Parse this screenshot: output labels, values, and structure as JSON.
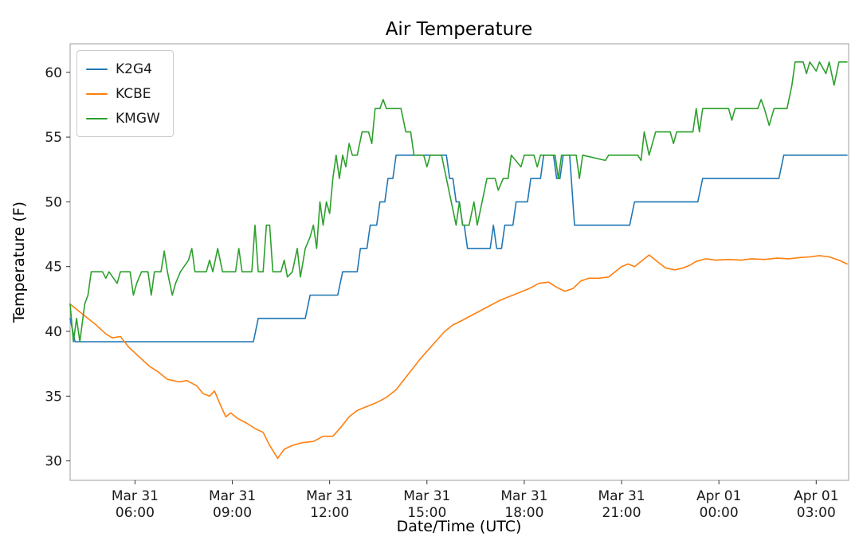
{
  "chart_data": {
    "type": "line",
    "title": "Air Temperature",
    "xlabel": "Date/Time (UTC)",
    "ylabel": "Temperature (F)",
    "x_unit": "hours since Mar 31 04:00 UTC",
    "xlim": [
      0,
      24
    ],
    "ylim": [
      28.5,
      62.2
    ],
    "yticks": [
      30,
      35,
      40,
      45,
      50,
      55,
      60
    ],
    "xticks": [
      {
        "t": 2,
        "line1": "Mar 31",
        "line2": "06:00"
      },
      {
        "t": 5,
        "line1": "Mar 31",
        "line2": "09:00"
      },
      {
        "t": 8,
        "line1": "Mar 31",
        "line2": "12:00"
      },
      {
        "t": 11,
        "line1": "Mar 31",
        "line2": "15:00"
      },
      {
        "t": 14,
        "line1": "Mar 31",
        "line2": "18:00"
      },
      {
        "t": 17,
        "line1": "Mar 31",
        "line2": "21:00"
      },
      {
        "t": 20,
        "line1": "Apr 01",
        "line2": "00:00"
      },
      {
        "t": 23,
        "line1": "Apr 01",
        "line2": "03:00"
      }
    ],
    "legend_position": "upper-left",
    "grid": false,
    "series": [
      {
        "name": "K2G4",
        "color": "#1f77b4",
        "points": [
          [
            0,
            41.0
          ],
          [
            0.15,
            39.2
          ],
          [
            5.65,
            39.2
          ],
          [
            5.8,
            41.0
          ],
          [
            7.25,
            41.0
          ],
          [
            7.4,
            42.8
          ],
          [
            8.25,
            42.8
          ],
          [
            8.4,
            44.6
          ],
          [
            8.85,
            44.6
          ],
          [
            8.95,
            46.4
          ],
          [
            9.15,
            46.4
          ],
          [
            9.25,
            48.2
          ],
          [
            9.45,
            48.2
          ],
          [
            9.55,
            50.0
          ],
          [
            9.7,
            50.0
          ],
          [
            9.8,
            51.8
          ],
          [
            9.95,
            51.8
          ],
          [
            10.05,
            53.6
          ],
          [
            11.6,
            53.6
          ],
          [
            11.7,
            51.8
          ],
          [
            11.8,
            51.8
          ],
          [
            11.9,
            50.0
          ],
          [
            12.0,
            50.0
          ],
          [
            12.1,
            48.2
          ],
          [
            12.15,
            48.2
          ],
          [
            12.25,
            46.4
          ],
          [
            12.95,
            46.4
          ],
          [
            13.05,
            48.2
          ],
          [
            13.15,
            46.4
          ],
          [
            13.3,
            46.4
          ],
          [
            13.4,
            48.2
          ],
          [
            13.65,
            48.2
          ],
          [
            13.75,
            50.0
          ],
          [
            14.1,
            50.0
          ],
          [
            14.2,
            51.8
          ],
          [
            14.5,
            51.8
          ],
          [
            14.6,
            53.6
          ],
          [
            14.9,
            53.6
          ],
          [
            15.0,
            51.8
          ],
          [
            15.1,
            51.8
          ],
          [
            15.2,
            53.6
          ],
          [
            15.4,
            53.6
          ],
          [
            15.55,
            48.2
          ],
          [
            17.25,
            48.2
          ],
          [
            17.4,
            50.0
          ],
          [
            19.35,
            50.0
          ],
          [
            19.5,
            51.8
          ],
          [
            21.85,
            51.8
          ],
          [
            22.0,
            53.6
          ],
          [
            23.95,
            53.6
          ]
        ]
      },
      {
        "name": "KCBE",
        "color": "#ff7f0e",
        "points": [
          [
            0,
            42.1
          ],
          [
            0.4,
            41.3
          ],
          [
            0.8,
            40.5
          ],
          [
            1.1,
            39.8
          ],
          [
            1.3,
            39.5
          ],
          [
            1.55,
            39.6
          ],
          [
            1.8,
            38.8
          ],
          [
            2.1,
            38.1
          ],
          [
            2.45,
            37.3
          ],
          [
            2.7,
            36.9
          ],
          [
            3.0,
            36.3
          ],
          [
            3.35,
            36.1
          ],
          [
            3.6,
            36.2
          ],
          [
            3.9,
            35.8
          ],
          [
            4.1,
            35.2
          ],
          [
            4.3,
            35.0
          ],
          [
            4.45,
            35.4
          ],
          [
            4.6,
            34.5
          ],
          [
            4.8,
            33.4
          ],
          [
            4.95,
            33.7
          ],
          [
            5.15,
            33.3
          ],
          [
            5.45,
            32.9
          ],
          [
            5.7,
            32.5
          ],
          [
            5.95,
            32.2
          ],
          [
            6.15,
            31.2
          ],
          [
            6.4,
            30.2
          ],
          [
            6.6,
            30.9
          ],
          [
            6.85,
            31.2
          ],
          [
            7.15,
            31.4
          ],
          [
            7.5,
            31.5
          ],
          [
            7.8,
            31.9
          ],
          [
            8.1,
            31.9
          ],
          [
            8.35,
            32.6
          ],
          [
            8.6,
            33.4
          ],
          [
            8.85,
            33.9
          ],
          [
            9.15,
            34.2
          ],
          [
            9.45,
            34.5
          ],
          [
            9.75,
            34.9
          ],
          [
            10.05,
            35.5
          ],
          [
            10.3,
            36.3
          ],
          [
            10.55,
            37.1
          ],
          [
            10.8,
            37.9
          ],
          [
            11.05,
            38.6
          ],
          [
            11.3,
            39.3
          ],
          [
            11.55,
            40.0
          ],
          [
            11.8,
            40.5
          ],
          [
            12.05,
            40.8
          ],
          [
            12.35,
            41.2
          ],
          [
            12.65,
            41.6
          ],
          [
            12.95,
            42.0
          ],
          [
            13.25,
            42.4
          ],
          [
            13.55,
            42.7
          ],
          [
            13.85,
            43.0
          ],
          [
            14.15,
            43.3
          ],
          [
            14.45,
            43.7
          ],
          [
            14.75,
            43.8
          ],
          [
            15.0,
            43.4
          ],
          [
            15.25,
            43.1
          ],
          [
            15.5,
            43.3
          ],
          [
            15.75,
            43.9
          ],
          [
            16.0,
            44.1
          ],
          [
            16.3,
            44.1
          ],
          [
            16.6,
            44.2
          ],
          [
            16.8,
            44.6
          ],
          [
            17.0,
            45.0
          ],
          [
            17.2,
            45.2
          ],
          [
            17.4,
            45.0
          ],
          [
            17.65,
            45.5
          ],
          [
            17.85,
            45.9
          ],
          [
            18.1,
            45.4
          ],
          [
            18.35,
            44.9
          ],
          [
            18.65,
            44.75
          ],
          [
            18.9,
            44.9
          ],
          [
            19.1,
            45.1
          ],
          [
            19.3,
            45.4
          ],
          [
            19.6,
            45.6
          ],
          [
            19.9,
            45.5
          ],
          [
            20.3,
            45.55
          ],
          [
            20.7,
            45.5
          ],
          [
            21.0,
            45.6
          ],
          [
            21.4,
            45.55
          ],
          [
            21.8,
            45.65
          ],
          [
            22.15,
            45.6
          ],
          [
            22.5,
            45.7
          ],
          [
            22.8,
            45.75
          ],
          [
            23.1,
            45.85
          ],
          [
            23.4,
            45.75
          ],
          [
            23.7,
            45.5
          ],
          [
            23.95,
            45.2
          ]
        ]
      },
      {
        "name": "KMGW",
        "color": "#2ca02c",
        "points": [
          [
            0,
            42.1
          ],
          [
            0.1,
            39.2
          ],
          [
            0.2,
            41.0
          ],
          [
            0.3,
            39.2
          ],
          [
            0.45,
            42.1
          ],
          [
            0.55,
            42.8
          ],
          [
            0.65,
            44.6
          ],
          [
            1.0,
            44.6
          ],
          [
            1.1,
            44.1
          ],
          [
            1.2,
            44.6
          ],
          [
            1.45,
            43.7
          ],
          [
            1.55,
            44.6
          ],
          [
            1.85,
            44.6
          ],
          [
            1.95,
            42.8
          ],
          [
            2.05,
            43.7
          ],
          [
            2.2,
            44.6
          ],
          [
            2.4,
            44.6
          ],
          [
            2.5,
            42.8
          ],
          [
            2.6,
            44.6
          ],
          [
            2.8,
            44.6
          ],
          [
            2.9,
            46.2
          ],
          [
            3.0,
            44.6
          ],
          [
            3.15,
            42.8
          ],
          [
            3.25,
            43.7
          ],
          [
            3.4,
            44.6
          ],
          [
            3.65,
            45.5
          ],
          [
            3.75,
            46.4
          ],
          [
            3.85,
            44.6
          ],
          [
            4.2,
            44.6
          ],
          [
            4.3,
            45.5
          ],
          [
            4.4,
            44.6
          ],
          [
            4.55,
            46.4
          ],
          [
            4.7,
            44.6
          ],
          [
            5.1,
            44.6
          ],
          [
            5.2,
            46.4
          ],
          [
            5.3,
            44.6
          ],
          [
            5.6,
            44.6
          ],
          [
            5.7,
            48.2
          ],
          [
            5.8,
            44.6
          ],
          [
            5.95,
            44.6
          ],
          [
            6.05,
            48.2
          ],
          [
            6.15,
            48.2
          ],
          [
            6.25,
            44.6
          ],
          [
            6.5,
            44.6
          ],
          [
            6.6,
            45.5
          ],
          [
            6.7,
            44.2
          ],
          [
            6.85,
            44.6
          ],
          [
            7.0,
            46.4
          ],
          [
            7.1,
            44.2
          ],
          [
            7.25,
            46.4
          ],
          [
            7.4,
            47.3
          ],
          [
            7.5,
            48.2
          ],
          [
            7.6,
            46.4
          ],
          [
            7.7,
            50.0
          ],
          [
            7.8,
            48.2
          ],
          [
            7.9,
            50.0
          ],
          [
            8.0,
            49.1
          ],
          [
            8.1,
            51.8
          ],
          [
            8.2,
            53.6
          ],
          [
            8.3,
            51.8
          ],
          [
            8.4,
            53.6
          ],
          [
            8.5,
            52.7
          ],
          [
            8.6,
            54.5
          ],
          [
            8.7,
            53.6
          ],
          [
            8.85,
            53.6
          ],
          [
            9.0,
            55.4
          ],
          [
            9.2,
            55.4
          ],
          [
            9.3,
            54.5
          ],
          [
            9.4,
            57.2
          ],
          [
            9.55,
            57.2
          ],
          [
            9.65,
            57.9
          ],
          [
            9.75,
            57.2
          ],
          [
            10.2,
            57.2
          ],
          [
            10.35,
            55.4
          ],
          [
            10.5,
            55.4
          ],
          [
            10.6,
            53.6
          ],
          [
            10.9,
            53.6
          ],
          [
            11.0,
            52.7
          ],
          [
            11.1,
            53.6
          ],
          [
            11.45,
            53.6
          ],
          [
            11.6,
            51.8
          ],
          [
            11.75,
            50.0
          ],
          [
            11.9,
            48.2
          ],
          [
            12.0,
            50.0
          ],
          [
            12.1,
            48.2
          ],
          [
            12.3,
            48.2
          ],
          [
            12.45,
            50.0
          ],
          [
            12.55,
            48.2
          ],
          [
            12.7,
            50.0
          ],
          [
            12.85,
            51.8
          ],
          [
            13.1,
            51.8
          ],
          [
            13.2,
            50.9
          ],
          [
            13.35,
            51.8
          ],
          [
            13.5,
            51.8
          ],
          [
            13.6,
            53.6
          ],
          [
            13.9,
            52.7
          ],
          [
            14.0,
            53.6
          ],
          [
            14.3,
            53.6
          ],
          [
            14.4,
            52.7
          ],
          [
            14.5,
            53.6
          ],
          [
            14.95,
            53.6
          ],
          [
            15.05,
            51.8
          ],
          [
            15.15,
            53.6
          ],
          [
            15.6,
            53.6
          ],
          [
            15.7,
            51.8
          ],
          [
            15.8,
            53.6
          ],
          [
            16.5,
            53.2
          ],
          [
            16.6,
            53.6
          ],
          [
            17.5,
            53.6
          ],
          [
            17.6,
            53.2
          ],
          [
            17.7,
            55.4
          ],
          [
            17.85,
            53.6
          ],
          [
            18.05,
            55.4
          ],
          [
            18.5,
            55.4
          ],
          [
            18.6,
            54.5
          ],
          [
            18.7,
            55.4
          ],
          [
            19.2,
            55.4
          ],
          [
            19.3,
            57.2
          ],
          [
            19.4,
            55.4
          ],
          [
            19.5,
            57.2
          ],
          [
            20.3,
            57.2
          ],
          [
            20.4,
            56.3
          ],
          [
            20.5,
            57.2
          ],
          [
            21.2,
            57.2
          ],
          [
            21.3,
            57.9
          ],
          [
            21.4,
            57.2
          ],
          [
            21.55,
            55.9
          ],
          [
            21.7,
            57.2
          ],
          [
            22.1,
            57.2
          ],
          [
            22.25,
            59.0
          ],
          [
            22.35,
            60.8
          ],
          [
            22.6,
            60.8
          ],
          [
            22.7,
            59.9
          ],
          [
            22.8,
            60.8
          ],
          [
            23.0,
            60.1
          ],
          [
            23.1,
            60.8
          ],
          [
            23.3,
            59.9
          ],
          [
            23.4,
            60.8
          ],
          [
            23.55,
            59.0
          ],
          [
            23.7,
            60.8
          ],
          [
            23.95,
            60.8
          ]
        ]
      }
    ]
  }
}
